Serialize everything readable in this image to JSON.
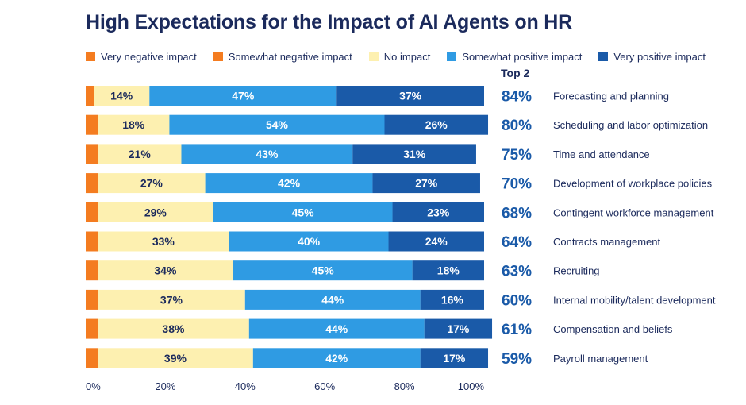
{
  "title": "High Expectations for the Impact of AI Agents on HR",
  "chart_data": {
    "type": "bar",
    "orientation": "horizontal",
    "stacked": true,
    "title": "High Expectations for the Impact of AI Agents on HR",
    "top2_header": "Top 2",
    "categories": [
      "Forecasting and planning",
      "Scheduling and labor optimization",
      "Time and attendance",
      "Development of workplace policies",
      "Contingent workforce management",
      "Contracts management",
      "Recruiting",
      "Internal mobility/talent development",
      "Compensation and beliefs",
      "Payroll management"
    ],
    "series": [
      {
        "name": "Very negative impact",
        "color": "#f47c20",
        "values": [
          2,
          3,
          3,
          3,
          3,
          3,
          3,
          3,
          3,
          3
        ],
        "labels_shown": false
      },
      {
        "name": "Somewhat negative impact",
        "color": "#f47c20",
        "values": [
          0,
          0,
          0,
          0,
          0,
          0,
          0,
          0,
          0,
          0
        ],
        "labels_shown": false
      },
      {
        "name": "No impact",
        "color": "#fdf0b0",
        "values": [
          14,
          18,
          21,
          27,
          29,
          33,
          34,
          37,
          38,
          39
        ],
        "label_color": "#1b2a5c"
      },
      {
        "name": "Somewhat positive impact",
        "color": "#2f9be3",
        "values": [
          47,
          54,
          43,
          42,
          45,
          40,
          45,
          44,
          44,
          42
        ],
        "label_color": "#ffffff"
      },
      {
        "name": "Very positive impact",
        "color": "#1a5aa8",
        "values": [
          37,
          26,
          31,
          27,
          23,
          24,
          18,
          16,
          17,
          17
        ],
        "label_color": "#ffffff"
      }
    ],
    "legend_colors": [
      "#f47c20",
      "#f47c20",
      "#fdf0b0",
      "#2f9be3",
      "#1a5aa8"
    ],
    "top2": [
      "84%",
      "80%",
      "75%",
      "70%",
      "68%",
      "64%",
      "63%",
      "60%",
      "61%",
      "59%"
    ],
    "xlim": [
      0,
      100
    ],
    "x_ticks": [
      "0%",
      "20%",
      "40%",
      "60%",
      "80%",
      "100%"
    ],
    "value_suffix": "%",
    "legend_position": "top",
    "grid": false
  }
}
